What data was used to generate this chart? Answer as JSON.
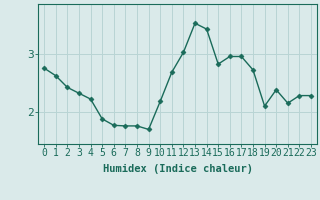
{
  "x": [
    0,
    1,
    2,
    3,
    4,
    5,
    6,
    7,
    8,
    9,
    10,
    11,
    12,
    13,
    14,
    15,
    16,
    17,
    18,
    19,
    20,
    21,
    22,
    23
  ],
  "y": [
    2.75,
    2.62,
    2.42,
    2.32,
    2.22,
    1.88,
    1.77,
    1.76,
    1.76,
    1.7,
    2.18,
    2.68,
    3.02,
    3.52,
    3.42,
    2.82,
    2.95,
    2.95,
    2.72,
    2.1,
    2.38,
    2.15,
    2.28,
    2.28
  ],
  "line_color": "#1a6b5a",
  "marker": "D",
  "marker_size": 2.5,
  "bg_color": "#daeaea",
  "grid_color": "#b8d4d4",
  "xlabel": "Humidex (Indice chaleur)",
  "xlabel_fontsize": 7.5,
  "tick_color": "#1a6b5a",
  "label_fontsize": 7,
  "yticks": [
    2,
    3
  ],
  "ylim": [
    1.45,
    3.85
  ],
  "xlim": [
    -0.5,
    23.5
  ],
  "linewidth": 1.0
}
